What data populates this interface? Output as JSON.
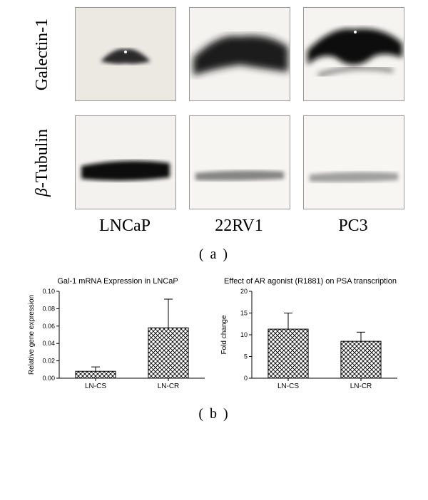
{
  "panel_a": {
    "row_labels": [
      "Galectin-1",
      "β-Tubulin"
    ],
    "col_labels": [
      "LNCaP",
      "22RV1",
      "PC3"
    ],
    "subcaption": "( a )",
    "blot_border": "#999999",
    "blot_bg": "#f6f5f2",
    "band_color": "#1a1a1a"
  },
  "panel_b": {
    "subcaption": "( b )",
    "chart1": {
      "type": "bar",
      "title": "Gal-1 mRNA Expression in LNCaP",
      "ylabel": "Relative gene expression",
      "categories": [
        "LN-CS",
        "LN-CR"
      ],
      "values": [
        0.008,
        0.058
      ],
      "errors": [
        0.005,
        0.033
      ],
      "ylim": [
        0,
        0.1
      ],
      "ytick_step": 0.02,
      "bar_width": 0.55,
      "bar_fill": "pattern-crosshatch",
      "bar_stroke": "#000000",
      "err_stroke": "#000000",
      "bg": "#ffffff",
      "title_fontsize": 11,
      "label_fontsize": 10,
      "tick_fontsize": 9
    },
    "chart2": {
      "type": "bar",
      "title": "Effect of AR agonist (R1881) on PSA transcription",
      "ylabel": "Fold change",
      "categories": [
        "LN-CS",
        "LN-CR"
      ],
      "values": [
        11.3,
        8.5
      ],
      "errors": [
        3.7,
        2.1
      ],
      "ylim": [
        0,
        20
      ],
      "ytick_step": 5,
      "bar_width": 0.55,
      "bar_fill": "pattern-crosshatch",
      "bar_stroke": "#000000",
      "err_stroke": "#000000",
      "bg": "#ffffff",
      "title_fontsize": 11,
      "label_fontsize": 10,
      "tick_fontsize": 9
    }
  }
}
